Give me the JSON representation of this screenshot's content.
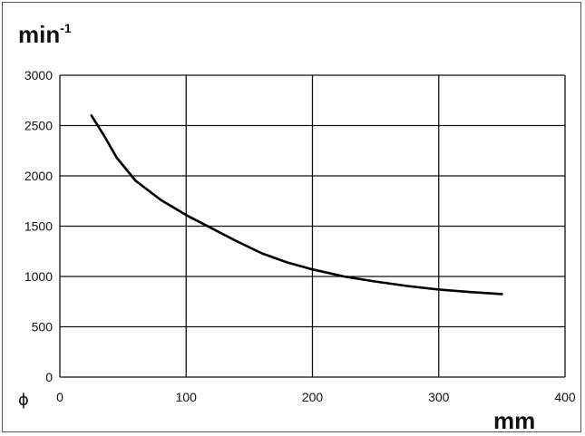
{
  "chart_data": {
    "type": "line",
    "ylabel_base": "min",
    "ylabel_exp": "-1",
    "xlabel": "mm",
    "x_symbol": "ϕ",
    "xlim": [
      0,
      400
    ],
    "ylim": [
      0,
      3000
    ],
    "xticks": [
      0,
      100,
      200,
      300,
      400
    ],
    "yticks": [
      0,
      500,
      1000,
      1500,
      2000,
      2500,
      3000
    ],
    "grid": true,
    "series": [
      {
        "x": [
          25,
          35,
          45,
          60,
          80,
          100,
          120,
          140,
          160,
          180,
          200,
          225,
          250,
          275,
          300,
          325,
          350
        ],
        "y": [
          2600,
          2400,
          2180,
          1950,
          1760,
          1610,
          1480,
          1350,
          1230,
          1140,
          1070,
          1000,
          950,
          905,
          870,
          845,
          825
        ]
      }
    ]
  }
}
